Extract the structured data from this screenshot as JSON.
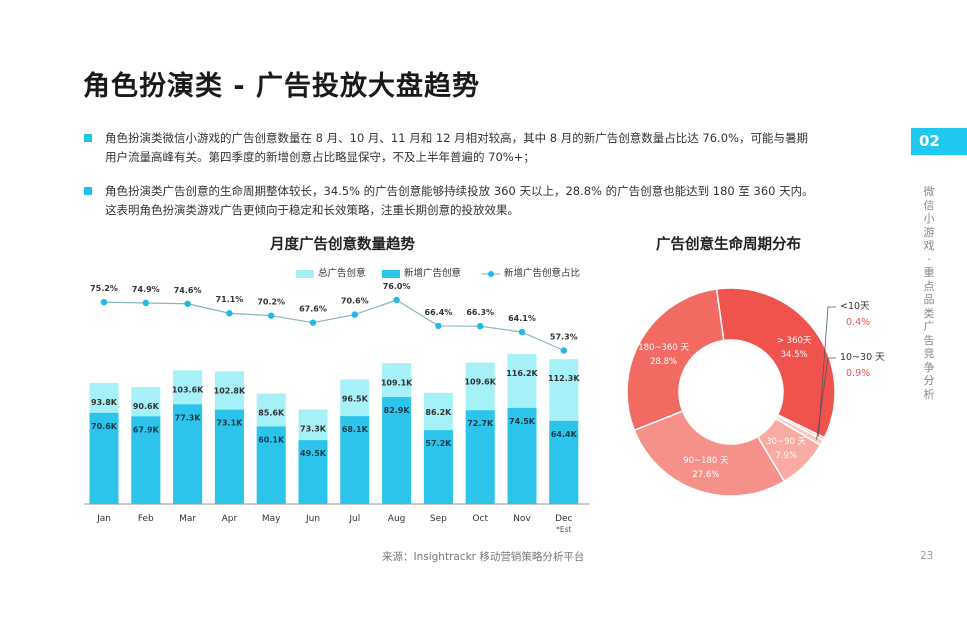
{
  "title": "角色扮演类 - 广告投放大盘趋势",
  "bullets": [
    {
      "line1": "角色扮演类微信小游戏的广告创意数量在 8 月、10 月、11 月和 12 月相对较高，其中 8 月的新广告创意数量占比达 76.0%，可能与暑期",
      "line2": "用户流量高峰有关。第四季度的新增创意占比略显保守，不及上半年普遍的 70%+；"
    },
    {
      "line1": "角色扮演类广告创意的生命周期整体较长，34.5% 的广告创意能够持续投放 360 天以上，28.8% 的广告创意也能达到 180 至 360 天内。",
      "line2": "这表明角色扮演类游戏广告更倾向于稳定和长效策略，注重长期创意的投放效果。"
    }
  ],
  "badge": "02",
  "side_label": "微信小游戏·重点品类广告竞争分析",
  "bar_chart_title": "月度广告创意数量趋势",
  "donut_chart_title": "广告创意生命周期分布",
  "source": "来源：Insightrackr 移动营销策略分析平台",
  "page_number": "23",
  "colors": {
    "accent": "#1ec8ef",
    "total_bar": "#a6f0f8",
    "new_bar": "#2dc4ec",
    "ratio_line": "#1fb9e6"
  },
  "legend": {
    "total": "总广告创意",
    "new": "新增广告创意",
    "ratio": "新增广告创意占比"
  },
  "chart_data": [
    {
      "type": "bar",
      "title": "月度广告创意数量趋势",
      "categories": [
        "Jan",
        "Feb",
        "Mar",
        "Apr",
        "May",
        "Jun",
        "Jul",
        "Aug",
        "Sep",
        "Oct",
        "Nov",
        "Dec"
      ],
      "category_note": "*Est",
      "series": [
        {
          "name": "总广告创意",
          "values": [
            93.8,
            90.6,
            103.6,
            102.8,
            85.6,
            73.3,
            96.5,
            109.1,
            86.2,
            109.6,
            116.2,
            112.3
          ],
          "labels": [
            "93.8K",
            "90.6K",
            "103.6K",
            "102.8K",
            "85.6K",
            "73.3K",
            "96.5K",
            "109.1K",
            "86.2K",
            "109.6K",
            "116.2K",
            "112.3K"
          ]
        },
        {
          "name": "新增广告创意",
          "values": [
            70.6,
            67.9,
            77.3,
            73.1,
            60.1,
            49.5,
            68.1,
            82.9,
            57.2,
            72.7,
            74.5,
            64.4
          ],
          "labels": [
            "70.6K",
            "67.9K",
            "77.3K",
            "73.1K",
            "60.1K",
            "49.5K",
            "68.1K",
            "82.9K",
            "57.2K",
            "72.7K",
            "74.5K",
            "64.4K"
          ]
        },
        {
          "name": "新增广告创意占比",
          "values": [
            75.2,
            74.9,
            74.6,
            71.1,
            70.2,
            67.6,
            70.6,
            76.0,
            66.4,
            66.3,
            64.1,
            57.3
          ],
          "labels": [
            "75.2%",
            "74.9%",
            "74.6%",
            "71.1%",
            "70.2%",
            "67.6%",
            "70.6%",
            "76.0%",
            "66.4%",
            "66.3%",
            "64.1%",
            "57.3%"
          ]
        }
      ],
      "ylim": [
        0,
        130
      ],
      "legend_position": "top"
    },
    {
      "type": "pie",
      "title": "广告创意生命周期分布",
      "slices": [
        {
          "label": "> 360天",
          "value": 34.5,
          "pct": "34.5%",
          "color": "#f0524d"
        },
        {
          "label": "<10天",
          "value": 0.4,
          "pct": "0.4%",
          "color": "#f7b9b5"
        },
        {
          "label": "10~30 天",
          "value": 0.9,
          "pct": "0.9%",
          "color": "#f9c6c2"
        },
        {
          "label": "30~90 天",
          "value": 7.9,
          "pct": "7.9%",
          "color": "#f8aaa4"
        },
        {
          "label": "90~180 天",
          "value": 27.6,
          "pct": "27.6%",
          "color": "#f6918a"
        },
        {
          "label": "180~360 天",
          "value": 28.8,
          "pct": "28.8%",
          "color": "#f16b62"
        }
      ]
    }
  ]
}
